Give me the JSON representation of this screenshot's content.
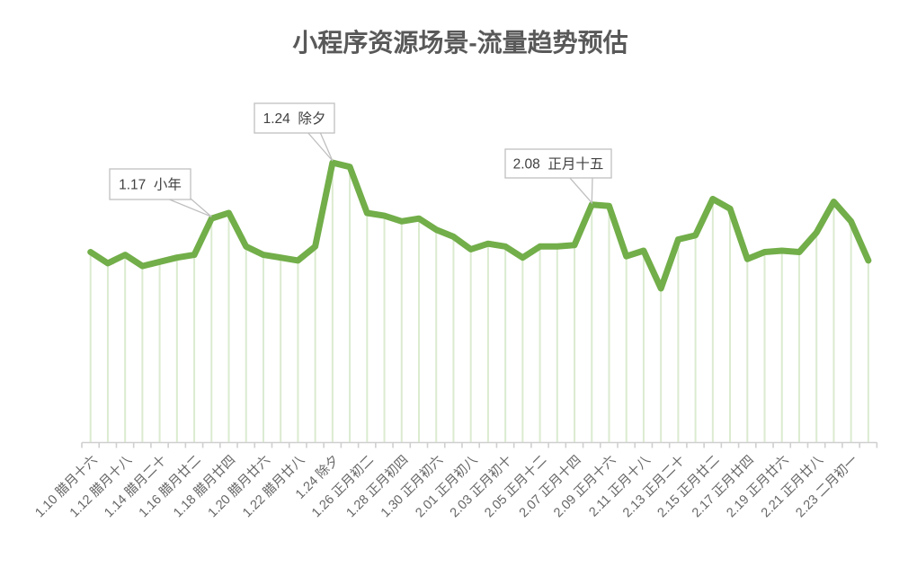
{
  "page": {
    "background": "#ffffff"
  },
  "chart_data": {
    "type": "line",
    "title": "小程序资源场景-流量趋势预估",
    "legend": "none",
    "y_axis": "hidden",
    "grid": "vertical-drop-lines",
    "ylim": [
      0,
      105
    ],
    "x_start_date": "1.10",
    "values": [
      68,
      64,
      67,
      63,
      64.5,
      66,
      67,
      80,
      82,
      70,
      67,
      66,
      65,
      70,
      100,
      98.5,
      82,
      81,
      79,
      80,
      76,
      73.5,
      69,
      71,
      70,
      66,
      70,
      70,
      70.5,
      85,
      84.5,
      66.5,
      68.5,
      55,
      72.5,
      74,
      87,
      83.5,
      65.5,
      68,
      68.5,
      68,
      75,
      86,
      79,
      65
    ],
    "x_tick_labels": [
      {
        "index": 0,
        "label": "1.10 腊月十六"
      },
      {
        "index": 2,
        "label": "1.12 腊月十八"
      },
      {
        "index": 4,
        "label": "1.14 腊月二十"
      },
      {
        "index": 6,
        "label": "1.16 腊月廿二"
      },
      {
        "index": 8,
        "label": "1.18 腊月廿四"
      },
      {
        "index": 10,
        "label": "1.20 腊月廿六"
      },
      {
        "index": 12,
        "label": "1.22 腊月廿八"
      },
      {
        "index": 14,
        "label": "1.24 除夕"
      },
      {
        "index": 16,
        "label": "1.26 正月初二"
      },
      {
        "index": 18,
        "label": "1.28 正月初四"
      },
      {
        "index": 20,
        "label": "1.30 正月初六"
      },
      {
        "index": 22,
        "label": "2.01 正月初八"
      },
      {
        "index": 24,
        "label": "2.03 正月初十"
      },
      {
        "index": 26,
        "label": "2.05 正月十二"
      },
      {
        "index": 28,
        "label": "2.07 正月十四"
      },
      {
        "index": 30,
        "label": "2.09 正月十六"
      },
      {
        "index": 32,
        "label": "2.11 正月十八"
      },
      {
        "index": 34,
        "label": "2.13 正月二十"
      },
      {
        "index": 36,
        "label": "2.15 正月廿二"
      },
      {
        "index": 38,
        "label": "2.17 正月廿四"
      },
      {
        "index": 40,
        "label": "2.19 正月廿六"
      },
      {
        "index": 42,
        "label": "2.21 正月廿八"
      },
      {
        "index": 44,
        "label": "2.23 二月初一"
      }
    ],
    "annotations": [
      {
        "index": 7,
        "label": "1.17  小年"
      },
      {
        "index": 14,
        "label": "1.24  除夕"
      },
      {
        "index": 29,
        "label": "2.08  正月十五"
      }
    ],
    "colors": {
      "line": "#72AE49",
      "drop_line": "#DBEBD0",
      "axis": "#CFCFCF",
      "tick_label": "#666666",
      "title": "#595959",
      "annotation_border": "#BFBFBF",
      "annotation_fill": "#FFFFFF",
      "annotation_text": "#404040"
    }
  }
}
